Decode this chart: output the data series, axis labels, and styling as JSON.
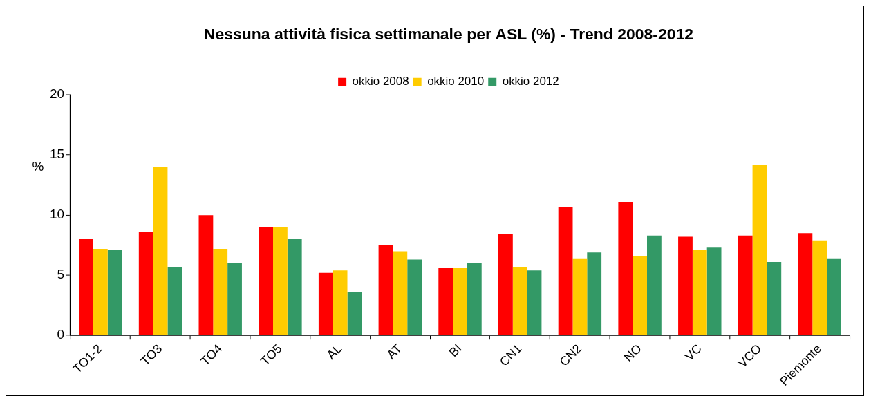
{
  "chart_data": {
    "type": "bar",
    "title": "Nessuna attività fisica settimanale per ASL (%) - Trend 2008-2012",
    "ylabel": "%",
    "categories": [
      "TO1-2",
      "TO3",
      "TO4",
      "TO5",
      "AL",
      "AT",
      "BI",
      "CN1",
      "CN2",
      "NO",
      "VC",
      "VCO",
      "Piemonte"
    ],
    "series": [
      {
        "name": "okkio 2008",
        "color": "#ff0000",
        "values": [
          8.0,
          8.6,
          10.0,
          9.0,
          5.2,
          7.5,
          5.6,
          8.4,
          10.7,
          11.1,
          8.2,
          8.3,
          8.5
        ]
      },
      {
        "name": "okkio 2010",
        "color": "#ffcc00",
        "values": [
          7.2,
          14.0,
          7.2,
          9.0,
          5.4,
          7.0,
          5.6,
          5.7,
          6.4,
          6.6,
          7.1,
          14.2,
          7.9
        ]
      },
      {
        "name": "okkio 2012",
        "color": "#339966",
        "values": [
          7.1,
          5.7,
          6.0,
          8.0,
          3.6,
          6.3,
          6.0,
          5.4,
          6.9,
          8.3,
          7.3,
          6.1,
          6.4
        ]
      }
    ],
    "ylim": [
      0,
      20
    ],
    "yticks": [
      0,
      5,
      10,
      15,
      20
    ],
    "grid": false,
    "legend": "top"
  }
}
